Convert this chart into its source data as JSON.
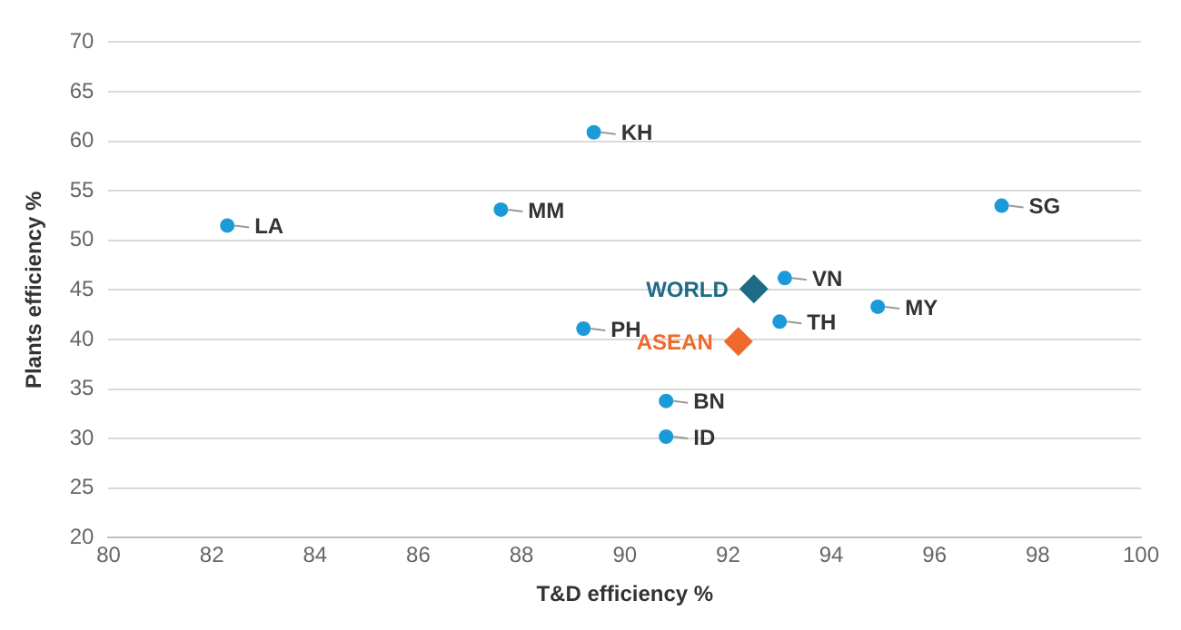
{
  "chart_data": {
    "type": "scatter",
    "xlabel": "T&D efficiency %",
    "ylabel": "Plants efficiency %",
    "xlim": [
      80,
      100
    ],
    "xticks": [
      80,
      82,
      84,
      86,
      88,
      90,
      92,
      94,
      96,
      98,
      100
    ],
    "ylim": [
      20,
      70
    ],
    "yticks": [
      20,
      25,
      30,
      35,
      40,
      45,
      50,
      55,
      60,
      65,
      70
    ],
    "grid": "y",
    "legend": false,
    "series": [
      {
        "color": "#1a9bd7",
        "marker": "circle",
        "x": [
          82.3,
          87.6,
          89.4,
          97.3,
          93.1,
          94.9,
          93.0,
          89.2,
          90.8,
          90.8
        ],
        "values": [
          51.5,
          53.1,
          60.9,
          53.5,
          46.2,
          43.3,
          41.8,
          41.1,
          33.8,
          30.2
        ]
      },
      {
        "name": "WORLD",
        "color": "#1d6b86",
        "marker": "diamond",
        "x": [
          92.5
        ],
        "values": [
          45.1
        ]
      },
      {
        "name": "ASEAN",
        "color": "#ef6a2a",
        "marker": "diamond",
        "x": [
          92.2
        ],
        "values": [
          39.8
        ]
      }
    ],
    "annotations": [
      {
        "text": "LA",
        "x": 82.3,
        "y": 51.5
      },
      {
        "text": "MM",
        "x": 87.6,
        "y": 53.1
      },
      {
        "text": "KH",
        "x": 89.4,
        "y": 60.9
      },
      {
        "text": "SG",
        "x": 97.3,
        "y": 53.5
      },
      {
        "text": "VN",
        "x": 93.1,
        "y": 46.2
      },
      {
        "text": "MY",
        "x": 94.9,
        "y": 43.3
      },
      {
        "text": "TH",
        "x": 93.0,
        "y": 41.8
      },
      {
        "text": "PH",
        "x": 89.2,
        "y": 41.1
      },
      {
        "text": "BN",
        "x": 90.8,
        "y": 33.8
      },
      {
        "text": "ID",
        "x": 90.8,
        "y": 30.2
      }
    ]
  }
}
